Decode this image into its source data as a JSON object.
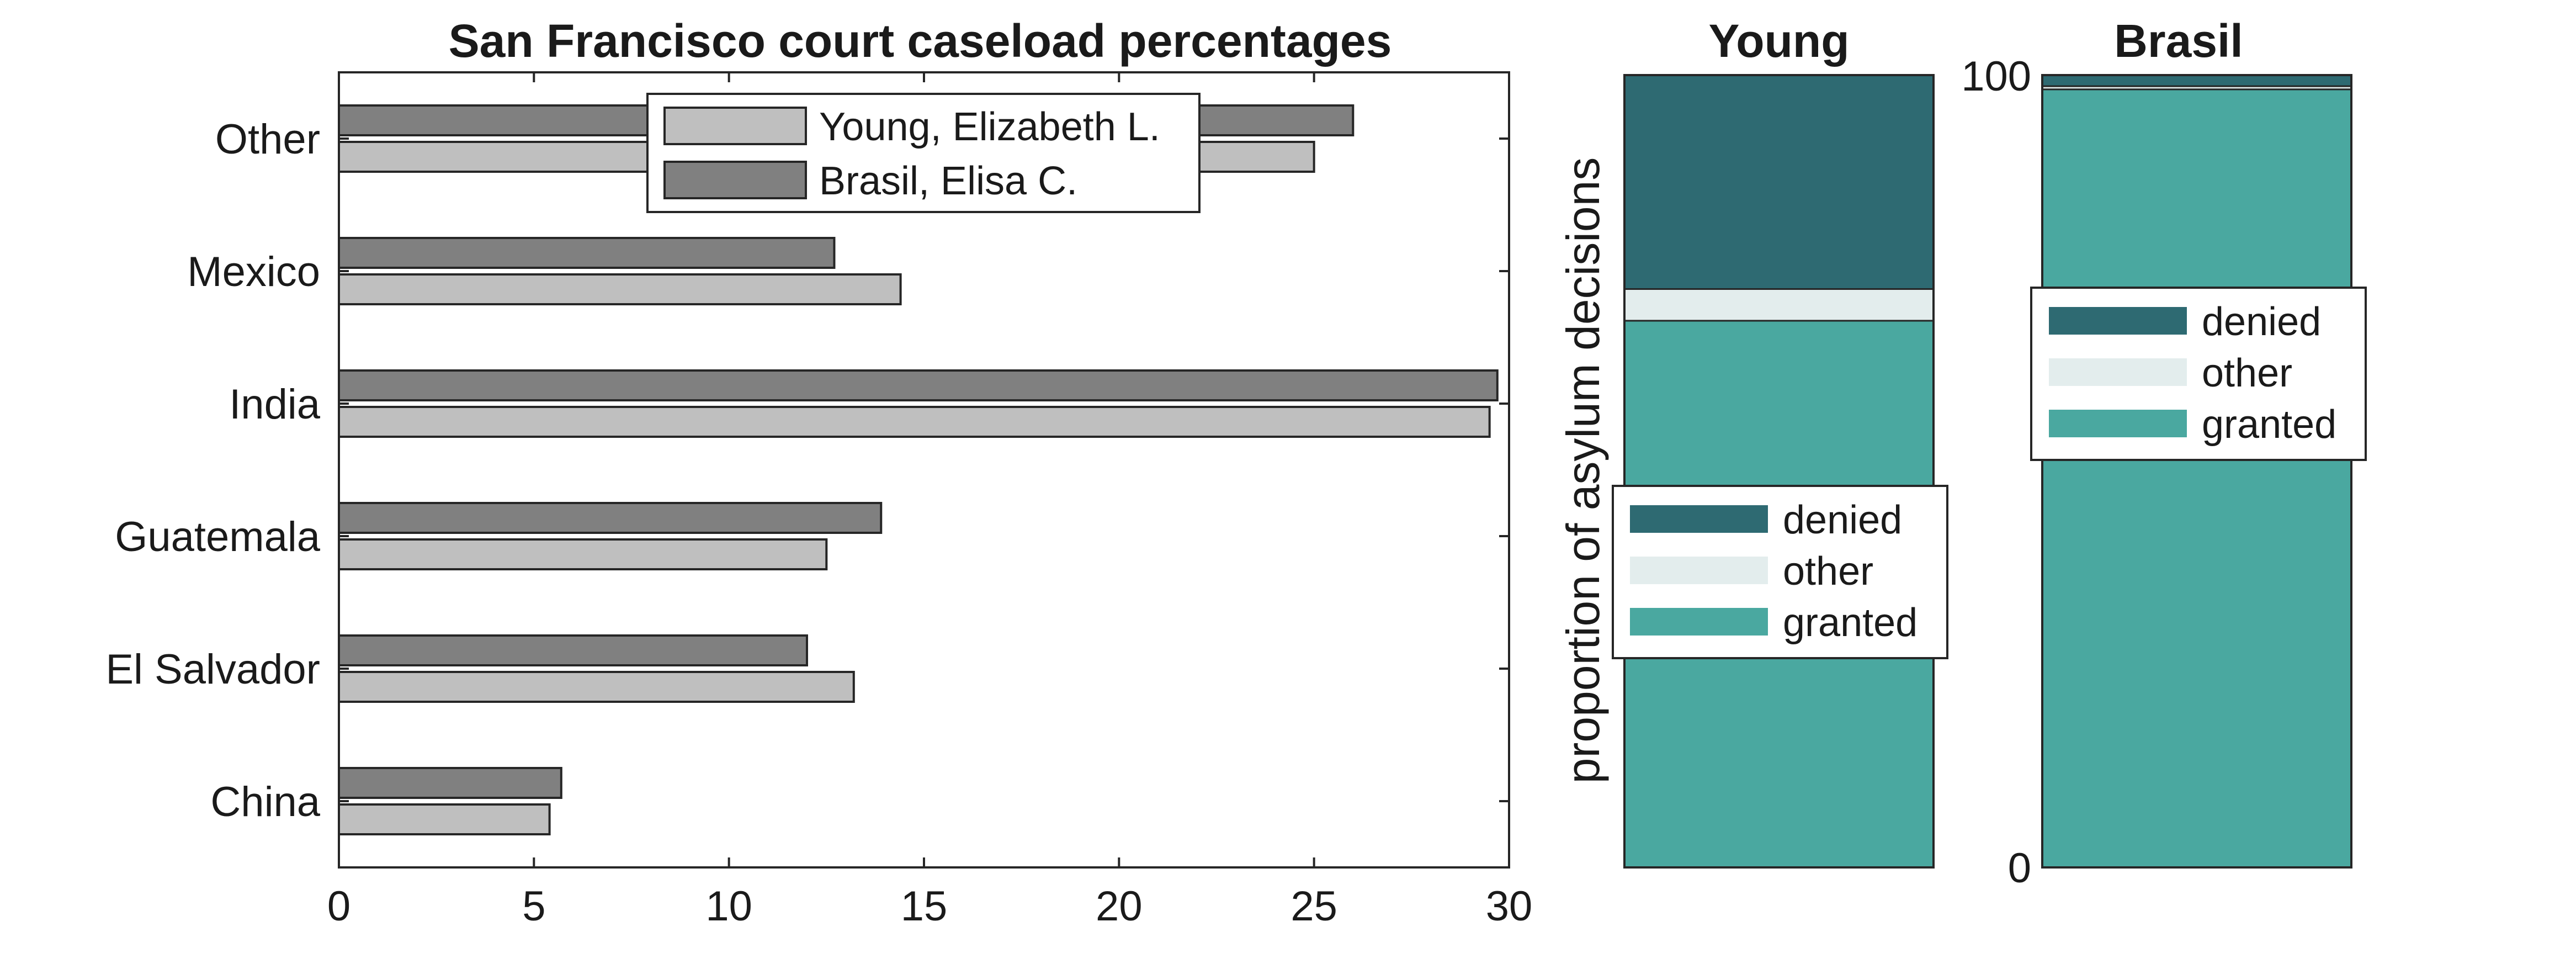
{
  "chart_data": [
    {
      "type": "bar",
      "orientation": "horizontal",
      "title": "San Francisco court caseload percentages",
      "categories": [
        "China",
        "El Salvador",
        "Guatemala",
        "India",
        "Mexico",
        "Other"
      ],
      "series": [
        {
          "name": "Young, Elizabeth L.",
          "values": [
            5.4,
            13.2,
            12.5,
            29.5,
            14.4,
            25.0
          ],
          "color": "#bfbfbf"
        },
        {
          "name": "Brasil, Elisa C.",
          "values": [
            5.7,
            12.0,
            13.9,
            29.7,
            12.7,
            26.0
          ],
          "color": "#808080"
        }
      ],
      "xlim": [
        0,
        30
      ],
      "xticks": [
        "0",
        "5",
        "10",
        "15",
        "20",
        "25",
        "30"
      ],
      "grid": false,
      "legend_position": "top"
    },
    {
      "type": "bar",
      "stacked": true,
      "title": "Young",
      "ylabel": "proportion of asylum decisions",
      "ylim": [
        0,
        100
      ],
      "series": [
        {
          "name": "granted",
          "value": 69.0,
          "color": "#4aa8a0"
        },
        {
          "name": "other",
          "value": 4.0,
          "color": "#e3eded"
        },
        {
          "name": "denied",
          "value": 27.0,
          "color": "#2e6a72"
        }
      ],
      "legend_position": "lower-middle"
    },
    {
      "type": "bar",
      "stacked": true,
      "title": "Brasil",
      "ylim": [
        0,
        100
      ],
      "yticks": [
        "0",
        "100"
      ],
      "series": [
        {
          "name": "granted",
          "value": 98.2,
          "color": "#4aa8a0"
        },
        {
          "name": "other",
          "value": 0.4,
          "color": "#e3eded"
        },
        {
          "name": "denied",
          "value": 1.4,
          "color": "#2e6a72"
        }
      ],
      "legend_position": "upper-middle"
    }
  ]
}
